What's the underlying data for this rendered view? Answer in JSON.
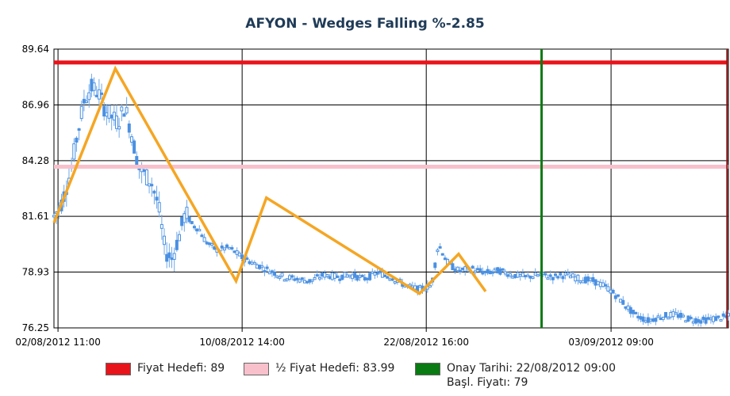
{
  "chart_data": {
    "type": "candlestick",
    "title": "AFYON - Wedges Falling %-2.85",
    "y_ticks": [
      76.25,
      78.93,
      81.61,
      84.28,
      86.96,
      89.64
    ],
    "ylim": [
      76.25,
      89.64
    ],
    "x_ticks": [
      "02/08/2012 11:00",
      "10/08/2012 14:00",
      "22/08/2012 16:00",
      "03/09/2012 09:00"
    ],
    "grid": true,
    "price_path": [
      [
        0.0,
        81.6
      ],
      [
        0.012,
        82.3
      ],
      [
        0.025,
        83.8
      ],
      [
        0.035,
        85.6
      ],
      [
        0.045,
        87.2
      ],
      [
        0.055,
        87.8
      ],
      [
        0.065,
        87.6
      ],
      [
        0.075,
        86.8
      ],
      [
        0.085,
        86.4
      ],
      [
        0.095,
        86.1
      ],
      [
        0.105,
        86.9
      ],
      [
        0.115,
        85.6
      ],
      [
        0.125,
        84.0
      ],
      [
        0.135,
        83.6
      ],
      [
        0.145,
        83.2
      ],
      [
        0.155,
        82.1
      ],
      [
        0.165,
        79.9
      ],
      [
        0.175,
        79.6
      ],
      [
        0.185,
        80.6
      ],
      [
        0.195,
        81.8
      ],
      [
        0.205,
        81.2
      ],
      [
        0.215,
        81.0
      ],
      [
        0.225,
        80.4
      ],
      [
        0.24,
        80.0
      ],
      [
        0.26,
        80.1
      ],
      [
        0.28,
        79.6
      ],
      [
        0.3,
        79.3
      ],
      [
        0.32,
        79.0
      ],
      [
        0.34,
        78.7
      ],
      [
        0.36,
        78.6
      ],
      [
        0.38,
        78.5
      ],
      [
        0.4,
        78.8
      ],
      [
        0.42,
        78.7
      ],
      [
        0.44,
        78.8
      ],
      [
        0.46,
        78.6
      ],
      [
        0.48,
        78.9
      ],
      [
        0.5,
        78.7
      ],
      [
        0.52,
        78.3
      ],
      [
        0.54,
        78.1
      ],
      [
        0.56,
        78.3
      ],
      [
        0.57,
        80.3
      ],
      [
        0.585,
        79.3
      ],
      [
        0.6,
        79.0
      ],
      [
        0.62,
        79.1
      ],
      [
        0.64,
        78.9
      ],
      [
        0.66,
        79.0
      ],
      [
        0.68,
        78.8
      ],
      [
        0.7,
        78.7
      ],
      [
        0.72,
        78.8
      ],
      [
        0.74,
        78.7
      ],
      [
        0.76,
        78.8
      ],
      [
        0.78,
        78.6
      ],
      [
        0.8,
        78.5
      ],
      [
        0.82,
        78.2
      ],
      [
        0.84,
        77.6
      ],
      [
        0.86,
        76.9
      ],
      [
        0.88,
        76.6
      ],
      [
        0.9,
        76.8
      ],
      [
        0.92,
        76.9
      ],
      [
        0.94,
        76.7
      ],
      [
        0.96,
        76.6
      ],
      [
        0.98,
        76.7
      ],
      [
        1.0,
        76.8
      ]
    ],
    "wedge_line": [
      [
        0.0,
        81.3
      ],
      [
        0.091,
        88.7
      ],
      [
        0.27,
        78.5
      ],
      [
        0.315,
        82.5
      ],
      [
        0.542,
        77.9
      ],
      [
        0.6,
        79.8
      ],
      [
        0.64,
        78.0
      ]
    ],
    "horizontal_lines": [
      {
        "value": 89,
        "color": "#e8141b"
      },
      {
        "value": 83.99,
        "color": "#f8c0cb"
      }
    ],
    "vertical_lines": [
      {
        "x": 0.723,
        "color": "#0a7a12"
      },
      {
        "x": 0.998,
        "color": "#8b1a1a"
      }
    ],
    "legend": [
      {
        "color": "#e8141b",
        "text": "Fiyat Hedefi: 89"
      },
      {
        "color": "#f8c0cb",
        "text": "½ Fiyat Hedefi: 83.99"
      },
      {
        "color": "#0a7a12",
        "text": "Onay Tarihi: 22/08/2012 09:00",
        "text2": "Başl. Fiyatı:  79"
      }
    ],
    "colors": {
      "candle": "#4a90e2",
      "wedge": "#f5a623",
      "grid": "#000000"
    }
  }
}
